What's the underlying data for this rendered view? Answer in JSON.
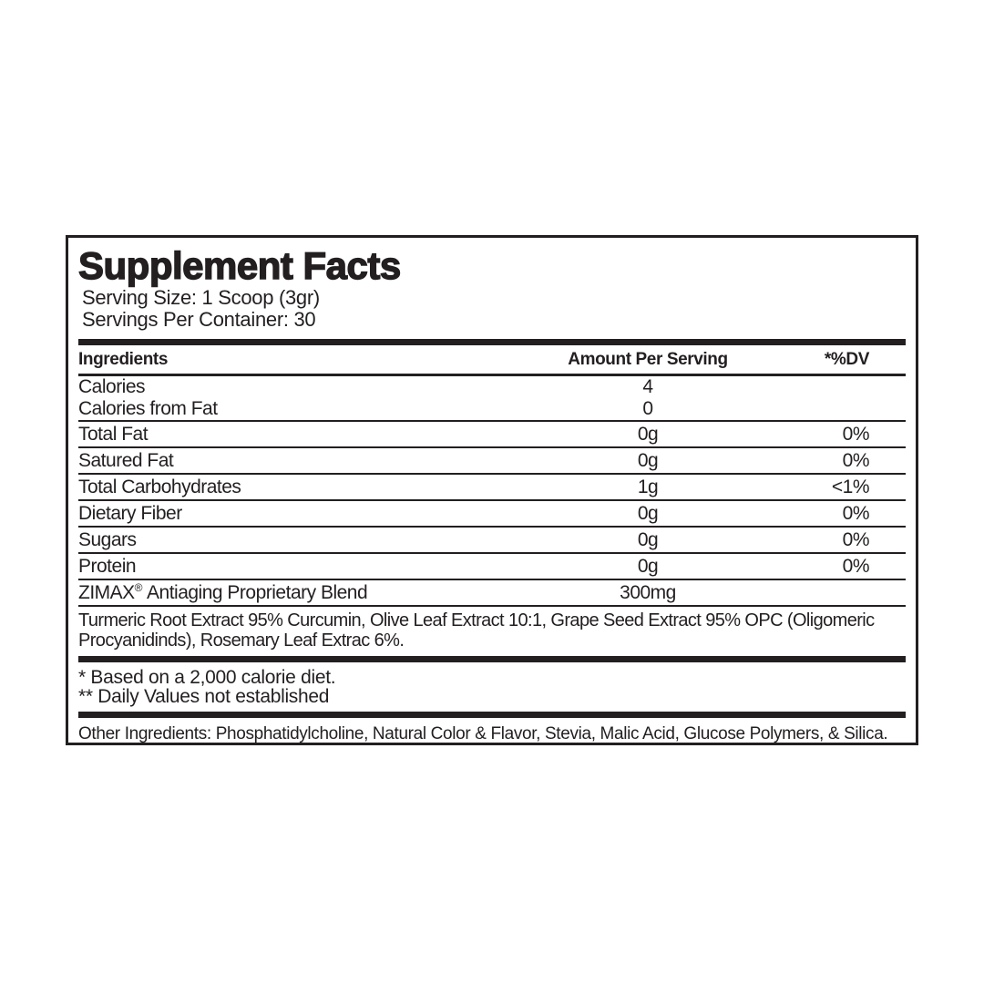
{
  "label": {
    "title": "Supplement Facts",
    "serving": {
      "size": "Serving Size: 1 Scoop (3gr)",
      "per_container": "Servings Per Container: 30"
    },
    "table": {
      "columns": {
        "ingredients": "Ingredients",
        "amount": "Amount Per Serving",
        "dv": "*%DV"
      },
      "rows": [
        {
          "name": "Calories",
          "amount": "4",
          "dv": ""
        },
        {
          "name": "Calories from Fat",
          "amount": "0",
          "dv": ""
        },
        {
          "name": "Total Fat",
          "amount": "0g",
          "dv": "0%"
        },
        {
          "name": "Satured Fat",
          "amount": "0g",
          "dv": "0%"
        },
        {
          "name": "Total Carbohydrates",
          "amount": "1g",
          "dv": "<1%"
        },
        {
          "name": "Dietary Fiber",
          "amount": "0g",
          "dv": "0%"
        },
        {
          "name": "Sugars",
          "amount": "0g",
          "dv": "0%"
        },
        {
          "name": "Protein",
          "amount": "0g",
          "dv": "0%"
        }
      ],
      "blend": {
        "brand": "ZIMAX",
        "reg": "®",
        "name": "Antiaging Proprietary Blend",
        "amount": "300mg",
        "dv": "",
        "description": "Turmeric Root Extract 95% Curcumin, Olive Leaf Extract 10:1, Grape Seed Extract 95% OPC (Oligomeric Procyanidinds), Rosemary Leaf Extrac 6%."
      }
    },
    "footnotes": {
      "calorie_diet": "* Based on a 2,000 calorie diet.",
      "daily_values": "** Daily Values not established"
    },
    "other_ingredients": "Other Ingredients: Phosphatidylcholine, Natural Color & Flavor, Stevia, Malic Acid, Glucose Polymers, & Silica.",
    "colors": {
      "text": "#231f20",
      "background": "#ffffff"
    }
  }
}
